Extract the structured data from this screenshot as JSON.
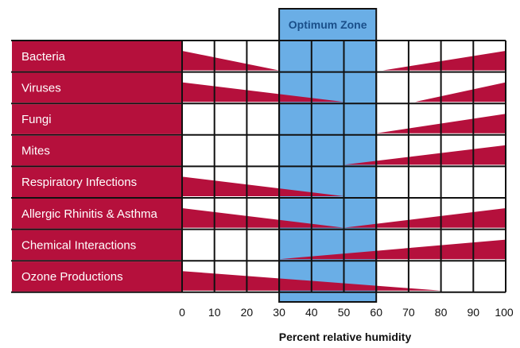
{
  "chart_data": {
    "type": "bar",
    "title": "",
    "xlabel": "Percent relative humidity",
    "xlim": [
      0,
      100
    ],
    "x_ticks": [
      "0",
      "10",
      "20",
      "30",
      "40",
      "50",
      "60",
      "70",
      "80",
      "90",
      "100"
    ],
    "optimum_zone": {
      "label": "Optimum Zone",
      "range": [
        30,
        60
      ]
    },
    "colors": {
      "label_bg": "#b5103c",
      "wedge": "#b5103c",
      "zone": "#6aaee6",
      "grid": "#111111"
    },
    "rows": [
      {
        "label": "Bacteria",
        "segments": [
          {
            "x0": 0,
            "x1": 30,
            "h0": 1.0,
            "h1": 0.0
          },
          {
            "x0": 62,
            "x1": 100,
            "h0": 0.0,
            "h1": 1.0
          }
        ]
      },
      {
        "label": "Viruses",
        "segments": [
          {
            "x0": 0,
            "x1": 50,
            "h0": 1.0,
            "h1": 0.0
          },
          {
            "x0": 72,
            "x1": 100,
            "h0": 0.0,
            "h1": 1.0
          }
        ]
      },
      {
        "label": "Fungi",
        "segments": [
          {
            "x0": 60,
            "x1": 100,
            "h0": 0.0,
            "h1": 1.0
          }
        ]
      },
      {
        "label": "Mites",
        "segments": [
          {
            "x0": 50,
            "x1": 100,
            "h0": 0.0,
            "h1": 1.0
          }
        ]
      },
      {
        "label": "Respiratory Infections",
        "segments": [
          {
            "x0": 0,
            "x1": 50,
            "h0": 1.0,
            "h1": 0.0
          }
        ]
      },
      {
        "label": "Allergic Rhinitis & Asthma",
        "segments": [
          {
            "x0": 0,
            "x1": 50,
            "h0": 1.0,
            "h1": 0.0
          },
          {
            "x0": 50,
            "x1": 100,
            "h0": 0.0,
            "h1": 1.0
          }
        ]
      },
      {
        "label": "Chemical Interactions",
        "segments": [
          {
            "x0": 30,
            "x1": 100,
            "h0": 0.0,
            "h1": 1.0
          }
        ]
      },
      {
        "label": "Ozone Productions",
        "segments": [
          {
            "x0": 0,
            "x1": 80,
            "h0": 1.0,
            "h1": 0.0
          }
        ]
      }
    ]
  }
}
